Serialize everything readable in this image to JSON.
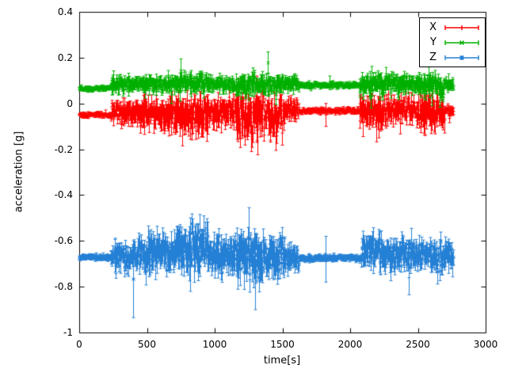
{
  "figure": {
    "background": "#ffffff",
    "axis_color": "#000000"
  },
  "chart_data": {
    "type": "scatter",
    "style": "errorbars",
    "title": "",
    "xlabel": "time[s]",
    "ylabel": "acceleration [g]",
    "xlim": [
      0,
      3000
    ],
    "ylim": [
      -1,
      0.4
    ],
    "xticks": [
      0,
      500,
      1000,
      1500,
      2000,
      2500,
      3000
    ],
    "yticks": [
      -1,
      -0.8,
      -0.6,
      -0.4,
      -0.2,
      0,
      0.2,
      0.4
    ],
    "grid": false,
    "legend": {
      "position": "top-right",
      "box": true
    },
    "series": [
      {
        "name": "X",
        "color": "#ff0000",
        "marker": "plus",
        "t_end": 2760,
        "segments": [
          [
            0,
            230,
            -0.05,
            0.01
          ],
          [
            230,
            300,
            -0.035,
            0.04
          ],
          [
            300,
            450,
            -0.04,
            0.05
          ],
          [
            450,
            650,
            -0.048,
            0.065
          ],
          [
            650,
            950,
            -0.05,
            0.08
          ],
          [
            950,
            1150,
            -0.04,
            0.06
          ],
          [
            1150,
            1500,
            -0.055,
            0.09
          ],
          [
            1500,
            1620,
            -0.03,
            0.045
          ],
          [
            1620,
            2070,
            -0.032,
            0.012
          ],
          [
            2070,
            2300,
            -0.038,
            0.065
          ],
          [
            2300,
            2500,
            -0.03,
            0.06
          ],
          [
            2500,
            2700,
            -0.035,
            0.07
          ],
          [
            2700,
            2765,
            -0.03,
            0.025
          ]
        ],
        "spikes": [
          [
            1310,
            -0.17,
            0.12
          ],
          [
            1270,
            -0.21,
            -0.02
          ],
          [
            760,
            -0.185,
            0.0
          ],
          [
            1820,
            -0.1,
            0.0
          ],
          [
            2210,
            -0.15,
            0.02
          ],
          [
            2550,
            -0.14,
            0.03
          ]
        ]
      },
      {
        "name": "Y",
        "color": "#00b000",
        "marker": "cross",
        "t_end": 2760,
        "segments": [
          [
            0,
            230,
            0.065,
            0.01
          ],
          [
            230,
            450,
            0.085,
            0.03
          ],
          [
            450,
            700,
            0.082,
            0.035
          ],
          [
            700,
            950,
            0.088,
            0.038
          ],
          [
            950,
            1150,
            0.085,
            0.03
          ],
          [
            1150,
            1500,
            0.082,
            0.04
          ],
          [
            1500,
            1620,
            0.085,
            0.03
          ],
          [
            1620,
            2070,
            0.08,
            0.012
          ],
          [
            2070,
            2300,
            0.085,
            0.045
          ],
          [
            2300,
            2500,
            0.09,
            0.04
          ],
          [
            2500,
            2700,
            0.082,
            0.045
          ],
          [
            2700,
            2765,
            0.085,
            0.025
          ]
        ],
        "spikes": [
          [
            1390,
            0.13,
            0.225
          ],
          [
            1450,
            -0.005,
            0.08
          ],
          [
            680,
            0.0,
            0.1
          ],
          [
            2150,
            -0.02,
            0.07
          ],
          [
            2600,
            -0.01,
            0.08
          ],
          [
            1850,
            0.06,
            0.12
          ]
        ]
      },
      {
        "name": "Z",
        "color": "#2580d5",
        "marker": "star",
        "t_end": 2760,
        "segments": [
          [
            0,
            230,
            -0.672,
            0.012
          ],
          [
            230,
            430,
            -0.67,
            0.055
          ],
          [
            430,
            700,
            -0.66,
            0.075
          ],
          [
            700,
            950,
            -0.635,
            0.09
          ],
          [
            950,
            1150,
            -0.66,
            0.07
          ],
          [
            1150,
            1350,
            -0.67,
            0.1
          ],
          [
            1350,
            1520,
            -0.66,
            0.085
          ],
          [
            1520,
            1620,
            -0.68,
            0.05
          ],
          [
            1620,
            2080,
            -0.675,
            0.013
          ],
          [
            2080,
            2300,
            -0.65,
            0.07
          ],
          [
            2300,
            2480,
            -0.66,
            0.06
          ],
          [
            2480,
            2765,
            -0.665,
            0.055
          ]
        ],
        "spikes": [
          [
            400,
            -0.935,
            -0.6
          ],
          [
            1250,
            -0.72,
            -0.455
          ],
          [
            1300,
            -0.9,
            -0.57
          ],
          [
            1820,
            -0.78,
            -0.58
          ],
          [
            2430,
            -0.835,
            -0.6
          ],
          [
            820,
            -0.82,
            -0.55
          ]
        ]
      }
    ]
  }
}
